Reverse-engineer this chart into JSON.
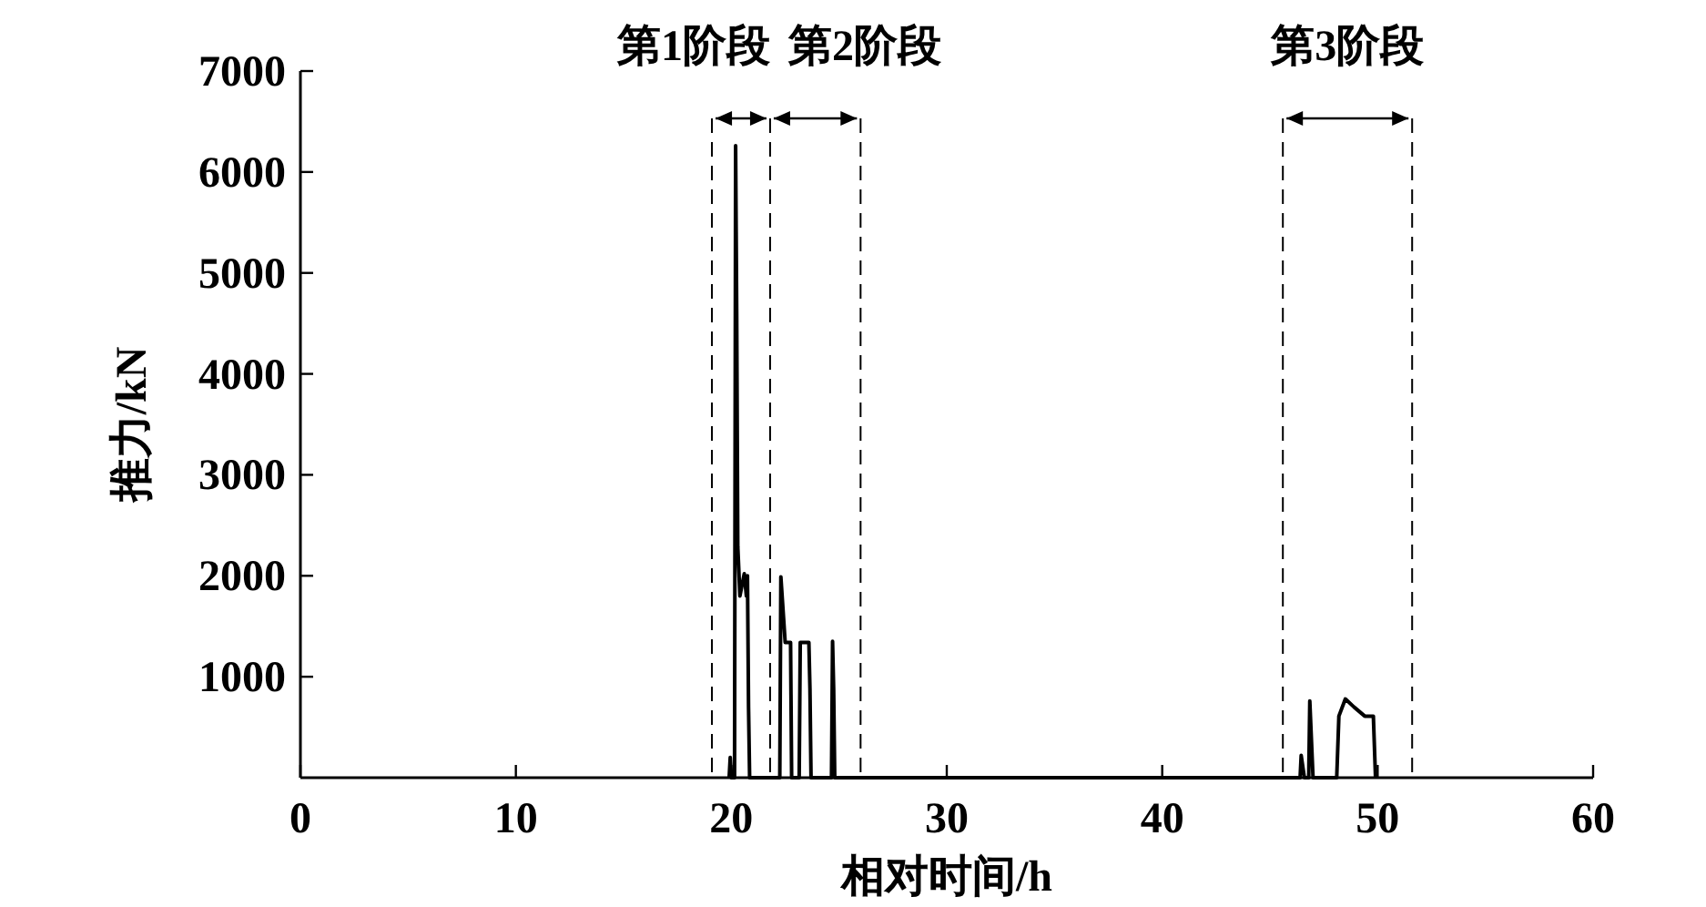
{
  "chart_data": {
    "type": "line",
    "xlabel": "相对时间/h",
    "ylabel": "推力/kN",
    "xlim": [
      0,
      60
    ],
    "ylim": [
      0,
      7000
    ],
    "xticks": [
      0,
      10,
      20,
      30,
      40,
      50,
      60
    ],
    "yticks": [
      1000,
      2000,
      3000,
      4000,
      5000,
      6000,
      7000
    ],
    "grid": false,
    "line_style": "solid",
    "ref_lines": [
      {
        "axis": "x",
        "value": 19.1,
        "line_style": "dashed"
      },
      {
        "axis": "x",
        "value": 21.8,
        "line_style": "dashed"
      },
      {
        "axis": "x",
        "value": 26,
        "line_style": "dashed"
      },
      {
        "axis": "x",
        "value": 45.6,
        "line_style": "dashed"
      },
      {
        "axis": "x",
        "value": 51.6,
        "line_style": "dashed"
      }
    ],
    "annotations": [
      "第1阶段",
      "第2阶段",
      "第3阶段"
    ],
    "series": [
      {
        "color": "#000000",
        "x": [
          19.9,
          19.95,
          20.0,
          20.15,
          20.2,
          20.25,
          20.3,
          20.4,
          20.6,
          20.7,
          20.75,
          20.8,
          20.85,
          22.25,
          22.3,
          22.5,
          22.75,
          22.8,
          23.15,
          23.2,
          23.6,
          23.65,
          23.7,
          24.65,
          24.7,
          24.75,
          24.8,
          46.4,
          46.45,
          46.6,
          46.8,
          46.85,
          47.0,
          48.1,
          48.2,
          48.5,
          48.9,
          49.4,
          49.8,
          49.9
        ],
        "values": [
          0,
          200,
          0,
          0,
          6260,
          4580,
          2290,
          1800,
          2020,
          1800,
          2000,
          700,
          0,
          0,
          1990,
          1340,
          1340,
          0,
          0,
          1340,
          1340,
          880,
          0,
          0,
          1350,
          880,
          0,
          0,
          220,
          0,
          0,
          760,
          0,
          0,
          610,
          780,
          700,
          610,
          610,
          0
        ]
      }
    ]
  }
}
